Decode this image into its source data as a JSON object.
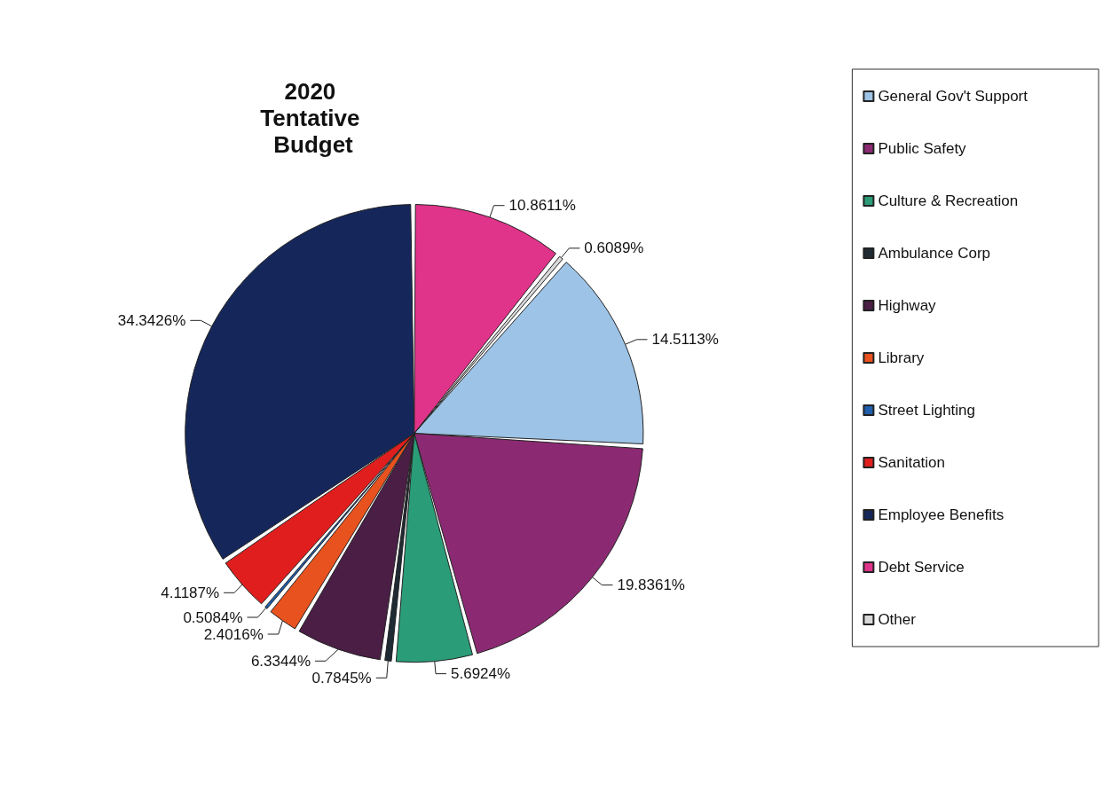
{
  "chart_data": {
    "type": "pie",
    "title": "2020 Tentative Budget",
    "categories": [
      "General Gov't Support",
      "Public Safety",
      "Culture & Recreation",
      "Ambulance Corp",
      "Highway",
      "Library",
      "Street Lighting",
      "Sanitation",
      "Employee Benefits",
      "Debt Service",
      "Other"
    ],
    "values": [
      14.5113,
      19.8361,
      5.6924,
      0.7845,
      6.3344,
      2.4016,
      0.5084,
      4.1187,
      34.3426,
      10.8611,
      0.6089
    ],
    "colors": [
      "#9dc3e6",
      "#8b2a72",
      "#2a9d78",
      "#1f2a33",
      "#4a1e45",
      "#e8521e",
      "#1f5fae",
      "#e01e1e",
      "#15275a",
      "#e0338a",
      "#d9d9d9"
    ],
    "value_labels": [
      "14.5113%",
      "19.8361%",
      "5.6924%",
      "0.7845%",
      "6.3344%",
      "2.4016%",
      "0.5084%",
      "4.1187%",
      "34.3426%",
      "10.8611%",
      "0.6089%"
    ],
    "legend": "right"
  }
}
